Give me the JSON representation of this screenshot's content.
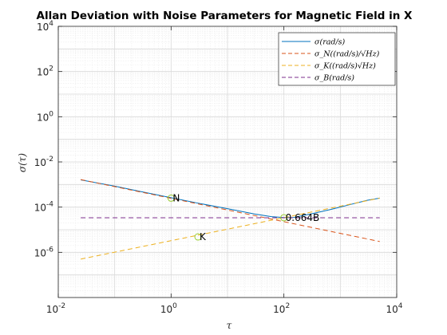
{
  "chart_data": {
    "type": "line",
    "title": "Allan Deviation with Noise Parameters for Magnetic Field in X",
    "xlabel": "τ",
    "ylabel": "σ(τ)",
    "xscale": "log",
    "yscale": "log",
    "xlim": [
      0.01,
      10000
    ],
    "ylim": [
      1e-08,
      10000
    ],
    "x_ticks": [
      {
        "base": "10",
        "exp": "-2",
        "value": 0.01
      },
      {
        "base": "10",
        "exp": "0",
        "value": 1
      },
      {
        "base": "10",
        "exp": "2",
        "value": 100
      },
      {
        "base": "10",
        "exp": "4",
        "value": 10000
      }
    ],
    "y_ticks": [
      {
        "base": "10",
        "exp": "-6",
        "value": 1e-06
      },
      {
        "base": "10",
        "exp": "-4",
        "value": 0.0001
      },
      {
        "base": "10",
        "exp": "-2",
        "value": 0.01
      },
      {
        "base": "10",
        "exp": "0",
        "value": 1
      },
      {
        "base": "10",
        "exp": "2",
        "value": 100
      },
      {
        "base": "10",
        "exp": "4",
        "value": 10000
      }
    ],
    "grid": true,
    "minor_grid": true,
    "legend_position": "top-right",
    "series": [
      {
        "name": "σ(rad/s)",
        "style": "solid",
        "color": "#0072bd",
        "points": [
          [
            0.025,
            0.0016
          ],
          [
            0.1,
            0.00085
          ],
          [
            0.3,
            0.00048
          ],
          [
            1,
            0.00026
          ],
          [
            3,
            0.00015
          ],
          [
            10,
            8.5e-05
          ],
          [
            30,
            5e-05
          ],
          [
            60,
            3.8e-05
          ],
          [
            100,
            3.45e-05
          ],
          [
            150,
            3.5e-05
          ],
          [
            300,
            5e-05
          ],
          [
            700,
            8e-05
          ],
          [
            1500,
            0.00013
          ],
          [
            3000,
            0.0002
          ],
          [
            5000,
            0.00025
          ]
        ]
      },
      {
        "name": "σ_N((rad/s)/√Hz)",
        "style": "dashed",
        "color": "#d95319",
        "points": [
          [
            0.025,
            0.00165
          ],
          [
            5000,
            3e-06
          ]
        ]
      },
      {
        "name": "σ_K((rad/s)√Hz)",
        "style": "dashed",
        "color": "#edb120",
        "points": [
          [
            0.025,
            5e-07
          ],
          [
            5000,
            0.00025
          ]
        ]
      },
      {
        "name": "σ_B(rad/s)",
        "style": "dashed",
        "color": "#7e2f8e",
        "points": [
          [
            0.025,
            3.4e-05
          ],
          [
            5000,
            3.4e-05
          ]
        ]
      }
    ],
    "annotations": [
      {
        "label": "N",
        "x": 1,
        "y": 0.00025
      },
      {
        "label": "K",
        "x": 3,
        "y": 4.8e-06
      },
      {
        "label": "0.664B",
        "x": 100,
        "y": 3.4e-05
      }
    ]
  }
}
